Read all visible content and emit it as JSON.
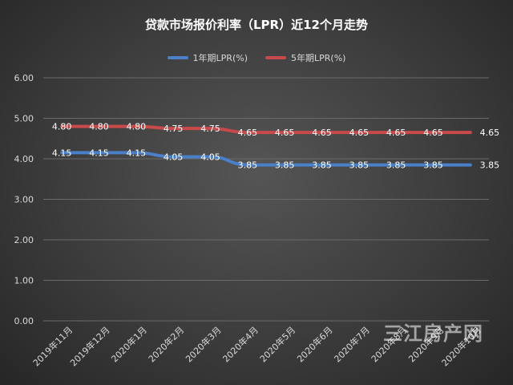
{
  "watermark": "三江房产网",
  "colors": {
    "series_1y": "#4a7fc9",
    "series_5y": "#c84a4a",
    "grid": "#6a6a6a",
    "text": "#d9d9d9"
  },
  "chart_data": {
    "type": "line",
    "title": "贷款市场报价利率（LPR）近12个月走势",
    "categories": [
      "2019年11月",
      "2019年12月",
      "2020年1月",
      "2020年2月",
      "2020年3月",
      "2020年4月",
      "2020年5月",
      "2020年6月",
      "2020年7月",
      "2020年8月",
      "2020年9月",
      "2020年10月"
    ],
    "series": [
      {
        "name": "1年期LPR(%)",
        "values": [
          4.15,
          4.15,
          4.15,
          4.05,
          4.05,
          3.85,
          3.85,
          3.85,
          3.85,
          3.85,
          3.85,
          3.85
        ],
        "labels": [
          "4.15",
          "4.15",
          "4.15",
          "4.05",
          "4.05",
          "3.85",
          "3.85",
          "3.85",
          "3.85",
          "3.85",
          "3.85",
          "3.85"
        ]
      },
      {
        "name": "5年期LPR(%)",
        "values": [
          4.8,
          4.8,
          4.8,
          4.75,
          4.75,
          4.65,
          4.65,
          4.65,
          4.65,
          4.65,
          4.65,
          4.65
        ],
        "labels": [
          "4.80",
          "4.80",
          "4.80",
          "4.75",
          "4.75",
          "4.65",
          "4.65",
          "4.65",
          "4.65",
          "4.65",
          "4.65",
          "4.65"
        ]
      }
    ],
    "ylim": [
      0,
      6
    ],
    "yticks": [
      "0.00",
      "1.00",
      "2.00",
      "3.00",
      "4.00",
      "5.00",
      "6.00"
    ],
    "grid": true,
    "legend_position": "top-center",
    "smooth": true
  }
}
